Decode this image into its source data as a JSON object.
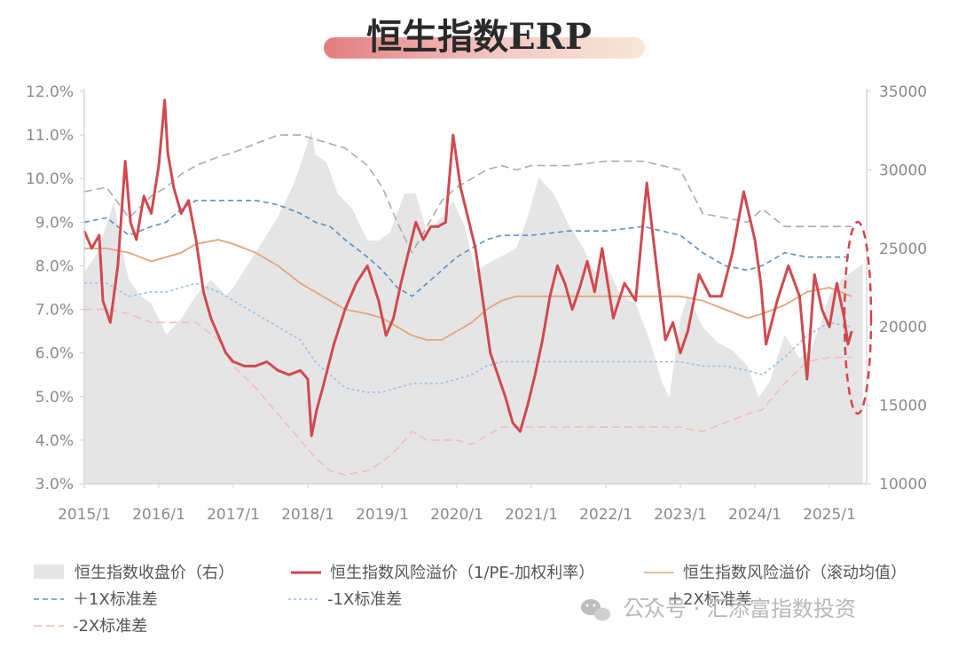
{
  "title": "恒生指数ERP",
  "colors": {
    "hsi_area": "#e5e5e5",
    "erp_line": "#cf4a4f",
    "rolling_mean": "#e3a57a",
    "plus1sd": "#5b8fc4",
    "minus1sd": "#9dbde6",
    "plus2sd": "#aaaaaa",
    "minus2sd": "#f2bcbc",
    "highlight_ellipse": "#d9434a",
    "title_bar_left": "#e8868a",
    "title_bar_right": "#f8e8da"
  },
  "watermark": "公众号 · 汇添富指数投资",
  "chart_data": {
    "type": "line",
    "x_tick_labels": [
      "2015/1",
      "2016/1",
      "2017/1",
      "2018/1",
      "2019/1",
      "2020/1",
      "2021/1",
      "2022/1",
      "2023/1",
      "2024/1",
      "2025/1"
    ],
    "x_range": [
      2015.0,
      2025.5
    ],
    "y_left": {
      "range": [
        3.0,
        12.0
      ],
      "tick_labels": [
        "3.0%",
        "4.0%",
        "5.0%",
        "6.0%",
        "7.0%",
        "8.0%",
        "9.0%",
        "10.0%",
        "11.0%",
        "12.0%"
      ]
    },
    "y_right": {
      "range": [
        10000,
        35000
      ],
      "tick_labels": [
        "10000",
        "15000",
        "20000",
        "25000",
        "30000",
        "35000"
      ]
    },
    "legend": [
      {
        "label": "恒生指数收盘价（右）",
        "type": "area"
      },
      {
        "label": "恒生指数风险溢价（1/PE-加权利率）",
        "type": "line"
      },
      {
        "label": "恒生指数风险溢价（滚动均值）",
        "type": "line"
      },
      {
        "label": "＋1X标准差",
        "type": "dash"
      },
      {
        "label": "-1X标准差",
        "type": "dot"
      },
      {
        "label": "＋2X标准差",
        "type": "dash"
      },
      {
        "label": "-2X标准差",
        "type": "dash"
      }
    ],
    "series": [
      {
        "name": "恒生指数收盘价（右）",
        "axis": "right",
        "x": [
          2015.0,
          2015.15,
          2015.3,
          2015.4,
          2015.5,
          2015.6,
          2015.75,
          2015.9,
          2016.1,
          2016.3,
          2016.5,
          2016.7,
          2016.9,
          2017.0,
          2017.2,
          2017.4,
          2017.6,
          2017.8,
          2017.95,
          2018.05,
          2018.1,
          2018.25,
          2018.4,
          2018.6,
          2018.8,
          2018.95,
          2019.1,
          2019.3,
          2019.45,
          2019.6,
          2019.8,
          2019.95,
          2020.1,
          2020.25,
          2020.4,
          2020.6,
          2020.8,
          2020.95,
          2021.1,
          2021.3,
          2021.5,
          2021.7,
          2021.85,
          2022.0,
          2022.2,
          2022.4,
          2022.6,
          2022.75,
          2022.85,
          2023.0,
          2023.1,
          2023.3,
          2023.5,
          2023.7,
          2023.9,
          2024.05,
          2024.2,
          2024.4,
          2024.6,
          2024.75,
          2024.9,
          2025.0,
          2025.15,
          2025.3,
          2025.45
        ],
        "values": [
          23500,
          24500,
          26500,
          28000,
          25000,
          23000,
          22000,
          21500,
          19500,
          20500,
          22000,
          23000,
          22000,
          22500,
          24000,
          25500,
          27000,
          29000,
          31000,
          32500,
          31000,
          30500,
          28500,
          27500,
          25500,
          25500,
          26000,
          28500,
          28500,
          26000,
          27000,
          28000,
          26500,
          23500,
          24000,
          24500,
          25000,
          27000,
          29500,
          28500,
          26500,
          25000,
          23500,
          24000,
          22000,
          21500,
          19000,
          16500,
          15500,
          20500,
          22000,
          20000,
          19000,
          18500,
          17500,
          15500,
          16500,
          19500,
          18000,
          18500,
          20500,
          22000,
          23000,
          23500,
          24000
        ]
      },
      {
        "name": "恒生指数风险溢价（1/PE-加权利率）",
        "axis": "left",
        "x": [
          2015.0,
          2015.1,
          2015.2,
          2015.25,
          2015.35,
          2015.45,
          2015.55,
          2015.62,
          2015.7,
          2015.8,
          2015.9,
          2016.0,
          2016.08,
          2016.12,
          2016.2,
          2016.3,
          2016.4,
          2016.5,
          2016.6,
          2016.7,
          2016.8,
          2016.9,
          2017.0,
          2017.15,
          2017.3,
          2017.45,
          2017.6,
          2017.75,
          2017.9,
          2018.0,
          2018.05,
          2018.12,
          2018.2,
          2018.35,
          2018.5,
          2018.65,
          2018.8,
          2018.95,
          2019.05,
          2019.15,
          2019.25,
          2019.35,
          2019.45,
          2019.55,
          2019.65,
          2019.75,
          2019.85,
          2019.95,
          2020.05,
          2020.15,
          2020.25,
          2020.35,
          2020.45,
          2020.55,
          2020.65,
          2020.75,
          2020.85,
          2020.95,
          2021.05,
          2021.15,
          2021.25,
          2021.35,
          2021.45,
          2021.55,
          2021.65,
          2021.75,
          2021.85,
          2021.95,
          2022.1,
          2022.25,
          2022.4,
          2022.55,
          2022.7,
          2022.8,
          2022.9,
          2023.0,
          2023.1,
          2023.25,
          2023.4,
          2023.55,
          2023.7,
          2023.85,
          2024.0,
          2024.08,
          2024.15,
          2024.3,
          2024.45,
          2024.6,
          2024.7,
          2024.8,
          2024.9,
          2025.0,
          2025.1,
          2025.2,
          2025.25,
          2025.3
        ],
        "values": [
          8.8,
          8.4,
          8.7,
          7.2,
          6.7,
          8.0,
          10.4,
          9.0,
          8.6,
          9.6,
          9.2,
          10.3,
          11.8,
          10.6,
          9.8,
          9.2,
          9.5,
          8.6,
          7.4,
          6.8,
          6.4,
          6.0,
          5.8,
          5.7,
          5.7,
          5.8,
          5.6,
          5.5,
          5.6,
          5.4,
          4.1,
          4.7,
          5.2,
          6.2,
          7.0,
          7.6,
          8.0,
          7.2,
          6.4,
          6.8,
          7.6,
          8.3,
          9.0,
          8.6,
          8.9,
          8.9,
          9.0,
          11.0,
          9.8,
          9.1,
          8.4,
          7.2,
          6.0,
          5.5,
          5.0,
          4.4,
          4.2,
          4.8,
          5.5,
          6.3,
          7.3,
          8.0,
          7.6,
          7.0,
          7.5,
          8.1,
          7.4,
          8.4,
          6.8,
          7.6,
          7.2,
          9.9,
          7.7,
          6.3,
          6.7,
          6.0,
          6.5,
          7.8,
          7.3,
          7.3,
          8.3,
          9.7,
          8.6,
          7.6,
          6.2,
          7.2,
          8.0,
          7.3,
          5.4,
          7.8,
          7.0,
          6.6,
          7.6,
          6.8,
          6.2,
          6.5
        ]
      },
      {
        "name": "恒生指数风险溢价（滚动均值）",
        "axis": "left",
        "x": [
          2015.0,
          2015.3,
          2015.6,
          2015.9,
          2016.1,
          2016.3,
          2016.5,
          2016.8,
          2017.0,
          2017.3,
          2017.6,
          2017.9,
          2018.1,
          2018.3,
          2018.5,
          2018.8,
          2019.0,
          2019.2,
          2019.4,
          2019.6,
          2019.8,
          2020.0,
          2020.2,
          2020.4,
          2020.6,
          2020.8,
          2021.0,
          2021.5,
          2022.0,
          2022.5,
          2023.0,
          2023.3,
          2023.6,
          2023.9,
          2024.1,
          2024.4,
          2024.7,
          2025.0,
          2025.3
        ],
        "values": [
          8.4,
          8.4,
          8.3,
          8.1,
          8.2,
          8.3,
          8.5,
          8.6,
          8.5,
          8.3,
          8.0,
          7.6,
          7.4,
          7.2,
          7.0,
          6.9,
          6.8,
          6.6,
          6.4,
          6.3,
          6.3,
          6.5,
          6.7,
          7.0,
          7.2,
          7.3,
          7.3,
          7.3,
          7.3,
          7.3,
          7.3,
          7.2,
          7.0,
          6.8,
          6.9,
          7.1,
          7.4,
          7.5,
          7.3
        ]
      },
      {
        "name": "＋1X标准差",
        "axis": "left",
        "x": [
          2015.0,
          2015.3,
          2015.6,
          2015.9,
          2016.1,
          2016.3,
          2016.5,
          2016.8,
          2017.0,
          2017.3,
          2017.6,
          2017.9,
          2018.1,
          2018.3,
          2018.5,
          2018.8,
          2019.0,
          2019.2,
          2019.4,
          2019.6,
          2019.8,
          2020.0,
          2020.2,
          2020.4,
          2020.6,
          2020.8,
          2021.0,
          2021.5,
          2022.0,
          2022.5,
          2023.0,
          2023.3,
          2023.6,
          2023.9,
          2024.1,
          2024.4,
          2024.7,
          2025.0,
          2025.3
        ],
        "values": [
          9.0,
          9.1,
          8.7,
          8.9,
          9.0,
          9.3,
          9.5,
          9.5,
          9.5,
          9.5,
          9.4,
          9.2,
          9.0,
          8.9,
          8.6,
          8.2,
          7.9,
          7.5,
          7.3,
          7.6,
          7.9,
          8.2,
          8.4,
          8.6,
          8.7,
          8.7,
          8.7,
          8.8,
          8.8,
          8.9,
          8.7,
          8.3,
          8.0,
          7.9,
          8.0,
          8.3,
          8.2,
          8.2,
          8.2
        ]
      },
      {
        "name": "-1X标准差",
        "axis": "left",
        "x": [
          2015.0,
          2015.3,
          2015.6,
          2015.9,
          2016.1,
          2016.3,
          2016.5,
          2016.8,
          2017.0,
          2017.3,
          2017.6,
          2017.9,
          2018.1,
          2018.3,
          2018.5,
          2018.8,
          2019.0,
          2019.2,
          2019.4,
          2019.6,
          2019.8,
          2020.0,
          2020.2,
          2020.4,
          2020.6,
          2020.8,
          2021.0,
          2021.5,
          2022.0,
          2022.5,
          2023.0,
          2023.3,
          2023.6,
          2023.9,
          2024.1,
          2024.4,
          2024.7,
          2025.0,
          2025.3
        ],
        "values": [
          7.6,
          7.6,
          7.3,
          7.4,
          7.4,
          7.5,
          7.6,
          7.4,
          7.2,
          6.9,
          6.6,
          6.3,
          5.8,
          5.5,
          5.2,
          5.1,
          5.1,
          5.2,
          5.3,
          5.3,
          5.3,
          5.4,
          5.5,
          5.7,
          5.8,
          5.8,
          5.8,
          5.8,
          5.8,
          5.8,
          5.8,
          5.7,
          5.7,
          5.6,
          5.5,
          5.9,
          6.4,
          6.7,
          6.6
        ]
      },
      {
        "name": "＋2X标准差",
        "axis": "left",
        "x": [
          2015.0,
          2015.3,
          2015.6,
          2015.9,
          2016.1,
          2016.3,
          2016.5,
          2016.8,
          2017.0,
          2017.3,
          2017.6,
          2017.9,
          2018.1,
          2018.3,
          2018.5,
          2018.8,
          2019.0,
          2019.2,
          2019.4,
          2019.6,
          2019.8,
          2020.0,
          2020.2,
          2020.4,
          2020.6,
          2020.8,
          2021.0,
          2021.5,
          2022.0,
          2022.5,
          2023.0,
          2023.3,
          2023.6,
          2023.9,
          2024.1,
          2024.4,
          2024.7,
          2025.0,
          2025.3
        ],
        "values": [
          9.7,
          9.8,
          9.1,
          9.6,
          9.8,
          10.1,
          10.3,
          10.5,
          10.6,
          10.8,
          11.0,
          11.0,
          10.9,
          10.8,
          10.7,
          10.3,
          9.8,
          9.0,
          8.3,
          8.9,
          9.5,
          9.8,
          10.0,
          10.2,
          10.3,
          10.2,
          10.3,
          10.3,
          10.4,
          10.4,
          10.2,
          9.2,
          9.1,
          9.0,
          9.3,
          8.9,
          8.9,
          8.9,
          8.9
        ]
      },
      {
        "name": "-2X标准差",
        "axis": "left",
        "x": [
          2015.0,
          2015.3,
          2015.6,
          2015.9,
          2016.1,
          2016.3,
          2016.5,
          2016.8,
          2017.0,
          2017.3,
          2017.6,
          2017.9,
          2018.1,
          2018.3,
          2018.5,
          2018.8,
          2019.0,
          2019.2,
          2019.4,
          2019.6,
          2019.8,
          2020.0,
          2020.2,
          2020.4,
          2020.6,
          2020.8,
          2021.0,
          2021.5,
          2022.0,
          2022.5,
          2023.0,
          2023.3,
          2023.6,
          2023.9,
          2024.1,
          2024.4,
          2024.7,
          2025.0,
          2025.3
        ],
        "values": [
          7.0,
          7.0,
          6.9,
          6.7,
          6.7,
          6.7,
          6.7,
          6.3,
          5.7,
          5.2,
          4.6,
          4.0,
          3.6,
          3.3,
          3.2,
          3.3,
          3.5,
          3.8,
          4.2,
          4.0,
          4.0,
          4.0,
          3.9,
          4.1,
          4.3,
          4.3,
          4.3,
          4.3,
          4.3,
          4.3,
          4.3,
          4.2,
          4.4,
          4.6,
          4.7,
          5.3,
          5.8,
          5.9,
          5.9
        ]
      }
    ]
  }
}
